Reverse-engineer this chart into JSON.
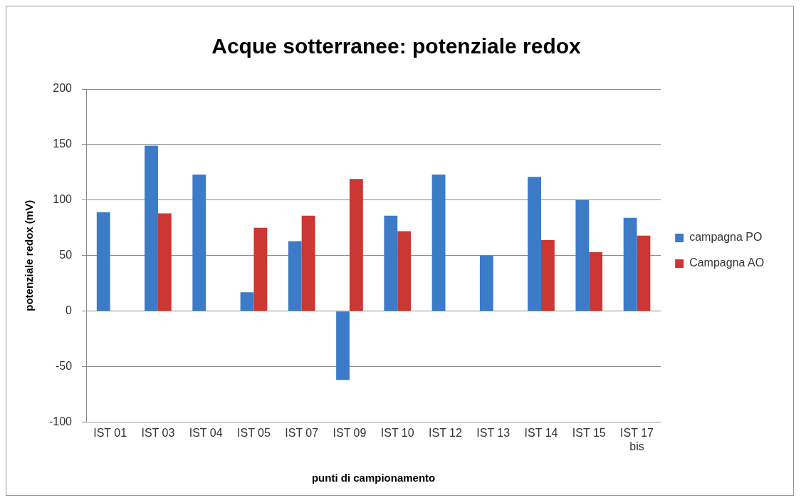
{
  "chart_data": {
    "type": "bar",
    "title": "Acque sotterranee: potenziale redox",
    "xlabel": "punti di campionamento",
    "ylabel": "potenziale redox (mV)",
    "categories": [
      "IST 01",
      "IST 03",
      "IST 04",
      "IST 05",
      "IST 07",
      "IST 09",
      "IST 10",
      "IST 12",
      "IST 13",
      "IST 14",
      "IST 15",
      "IST 17 bis"
    ],
    "series": [
      {
        "name": "campagna PO",
        "color": "#3b7bc8",
        "values": [
          89,
          149,
          123,
          17,
          63,
          -62,
          86,
          123,
          50,
          121,
          100,
          84
        ]
      },
      {
        "name": "Campagna AO",
        "color": "#cc3633",
        "values": [
          null,
          88,
          null,
          75,
          86,
          119,
          72,
          null,
          null,
          64,
          53,
          68
        ]
      }
    ],
    "ylim": [
      -100,
      200
    ],
    "yticks": [
      -100,
      -50,
      0,
      50,
      100,
      150,
      200
    ],
    "grid": "y",
    "legend": "right"
  }
}
